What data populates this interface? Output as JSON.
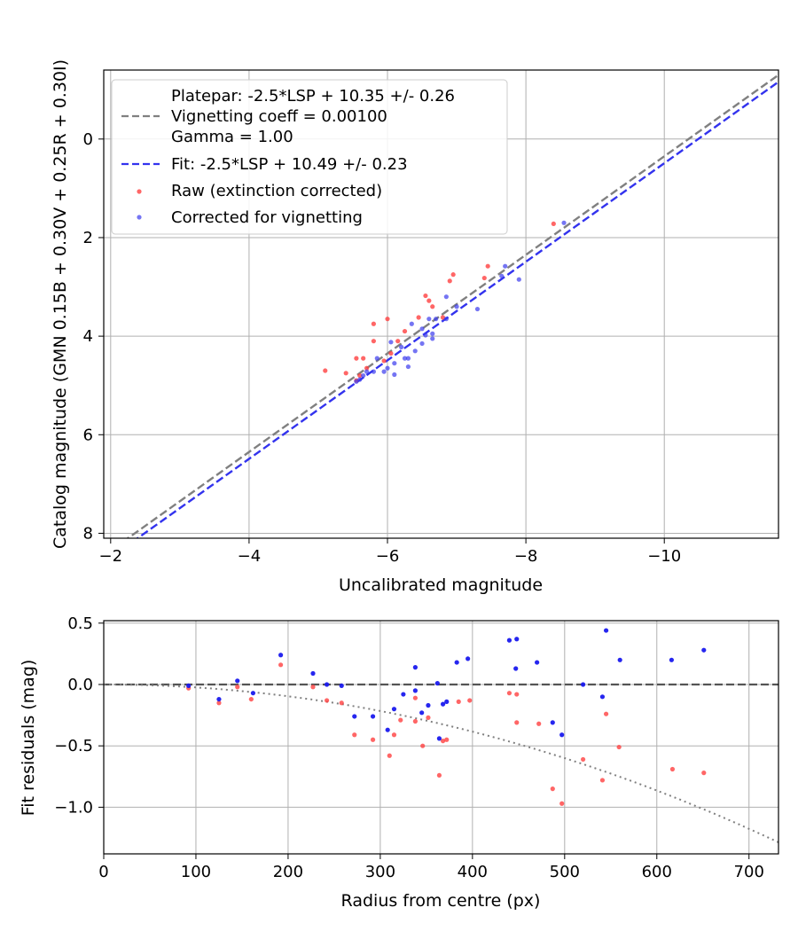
{
  "chart_data": [
    {
      "type": "scatter",
      "xlabel": "Uncalibrated magnitude",
      "ylabel": "Catalog magnitude (GMN 0.15B + 0.30V + 0.25R + 0.30I)",
      "xlim": [
        -1.9,
        -11.65
      ],
      "ylim": [
        8.1,
        -1.4
      ],
      "xticks": [
        -2,
        -4,
        -6,
        -8,
        -10
      ],
      "xtick_labels": [
        "−2",
        "−4",
        "−6",
        "−8",
        "−10"
      ],
      "yticks": [
        0,
        2,
        4,
        6,
        8
      ],
      "ytick_labels": [
        "0",
        "2",
        "4",
        "6",
        "8"
      ],
      "grid": true,
      "legend_position": "top-left",
      "lines": [
        {
          "name": "Platepar: -2.5*LSP + 10.35 +/- 0.26\nVignetting coeff = 0.00100\nGamma = 1.00",
          "color": "#808080",
          "dash": "dashed",
          "slope": 1,
          "intercept": 10.35
        },
        {
          "name": "Fit: -2.5*LSP + 10.49 +/- 0.23",
          "color": "#3333ee",
          "dash": "dashed",
          "slope": 1,
          "intercept": 10.49
        }
      ],
      "series": [
        {
          "name": "Raw (extinction corrected)",
          "color": "#ff4040",
          "points": [
            [
              -8.4,
              1.72
            ],
            [
              -7.45,
              2.58
            ],
            [
              -7.4,
              2.82
            ],
            [
              -6.95,
              2.75
            ],
            [
              -6.9,
              2.88
            ],
            [
              -6.55,
              3.18
            ],
            [
              -6.6,
              3.28
            ],
            [
              -6.65,
              3.4
            ],
            [
              -6.8,
              3.62
            ],
            [
              -6.45,
              3.62
            ],
            [
              -6.0,
              3.65
            ],
            [
              -5.8,
              3.75
            ],
            [
              -6.25,
              3.9
            ],
            [
              -6.15,
              4.1
            ],
            [
              -5.8,
              4.1
            ],
            [
              -6.05,
              4.35
            ],
            [
              -5.95,
              4.5
            ],
            [
              -5.65,
              4.45
            ],
            [
              -5.55,
              4.45
            ],
            [
              -5.1,
              4.7
            ],
            [
              -5.4,
              4.75
            ],
            [
              -5.6,
              4.8
            ],
            [
              -5.7,
              4.65
            ],
            [
              -5.55,
              4.9
            ]
          ]
        },
        {
          "name": "Corrected for vignetting",
          "color": "#3a3aee",
          "points": [
            [
              -8.55,
              1.7
            ],
            [
              -7.7,
              2.58
            ],
            [
              -7.65,
              2.78
            ],
            [
              -7.9,
              2.85
            ],
            [
              -7.3,
              3.45
            ],
            [
              -7.0,
              3.4
            ],
            [
              -6.85,
              3.2
            ],
            [
              -6.85,
              3.65
            ],
            [
              -6.7,
              3.65
            ],
            [
              -6.6,
              3.65
            ],
            [
              -6.5,
              3.85
            ],
            [
              -6.55,
              3.98
            ],
            [
              -6.65,
              3.95
            ],
            [
              -6.65,
              4.05
            ],
            [
              -6.35,
              3.75
            ],
            [
              -6.5,
              4.15
            ],
            [
              -6.05,
              4.12
            ],
            [
              -6.2,
              4.22
            ],
            [
              -6.3,
              4.45
            ],
            [
              -6.4,
              4.3
            ],
            [
              -6.25,
              4.45
            ],
            [
              -6.3,
              4.62
            ],
            [
              -6.1,
              4.55
            ],
            [
              -6.0,
              4.65
            ],
            [
              -5.85,
              4.45
            ],
            [
              -5.95,
              4.72
            ],
            [
              -6.1,
              4.78
            ],
            [
              -5.8,
              4.72
            ],
            [
              -5.7,
              4.72
            ],
            [
              -5.65,
              4.8
            ],
            [
              -5.6,
              4.88
            ],
            [
              -5.55,
              4.92
            ]
          ]
        }
      ]
    },
    {
      "type": "scatter",
      "xlabel": "Radius from centre (px)",
      "ylabel": "Fit residuals (mag)",
      "xlim": [
        0,
        732
      ],
      "ylim": [
        -1.38,
        0.52
      ],
      "xticks": [
        0,
        100,
        200,
        300,
        400,
        500,
        600,
        700
      ],
      "xtick_labels": [
        "0",
        "100",
        "200",
        "300",
        "400",
        "500",
        "600",
        "700"
      ],
      "yticks": [
        0.5,
        0.0,
        -0.5,
        -1.0
      ],
      "ytick_labels": [
        "0.5",
        "0.0",
        "−0.5",
        "−1.0"
      ],
      "grid": true,
      "reference_lines": [
        {
          "name": "zero",
          "type": "horizontal",
          "value": 0,
          "color": "#555555",
          "dash": "dashed"
        },
        {
          "name": "vignetting model",
          "type": "curve",
          "coefficient": -2.4e-06,
          "color": "#808080",
          "dash": "dotted"
        }
      ],
      "series": [
        {
          "name": "Raw (extinction corrected)",
          "color": "#ff4040",
          "points": [
            [
              92,
              -0.03
            ],
            [
              125,
              -0.15
            ],
            [
              145,
              -0.02
            ],
            [
              160,
              -0.12
            ],
            [
              192,
              0.16
            ],
            [
              227,
              -0.02
            ],
            [
              242,
              -0.13
            ],
            [
              258,
              -0.15
            ],
            [
              272,
              -0.41
            ],
            [
              292,
              -0.45
            ],
            [
              310,
              -0.58
            ],
            [
              315,
              -0.41
            ],
            [
              322,
              -0.29
            ],
            [
              338,
              -0.11
            ],
            [
              338,
              -0.3
            ],
            [
              346,
              -0.5
            ],
            [
              352,
              -0.27
            ],
            [
              364,
              -0.74
            ],
            [
              368,
              -0.46
            ],
            [
              372,
              -0.45
            ],
            [
              385,
              -0.14
            ],
            [
              397,
              -0.13
            ],
            [
              440,
              -0.07
            ],
            [
              448,
              -0.08
            ],
            [
              448,
              -0.31
            ],
            [
              472,
              -0.32
            ],
            [
              487,
              -0.85
            ],
            [
              497,
              -0.97
            ],
            [
              520,
              -0.61
            ],
            [
              541,
              -0.78
            ],
            [
              545,
              -0.24
            ],
            [
              559,
              -0.51
            ],
            [
              617,
              -0.69
            ],
            [
              651,
              -0.72
            ]
          ]
        },
        {
          "name": "Corrected for vignetting",
          "color": "#1a1aee",
          "points": [
            [
              92,
              -0.01
            ],
            [
              125,
              -0.12
            ],
            [
              145,
              0.03
            ],
            [
              162,
              -0.07
            ],
            [
              192,
              0.24
            ],
            [
              227,
              0.09
            ],
            [
              242,
              0.0
            ],
            [
              258,
              -0.01
            ],
            [
              272,
              -0.26
            ],
            [
              292,
              -0.26
            ],
            [
              308,
              -0.37
            ],
            [
              315,
              -0.2
            ],
            [
              325,
              -0.08
            ],
            [
              338,
              0.14
            ],
            [
              338,
              -0.05
            ],
            [
              345,
              -0.23
            ],
            [
              352,
              -0.17
            ],
            [
              362,
              0.01
            ],
            [
              364,
              -0.44
            ],
            [
              368,
              -0.16
            ],
            [
              372,
              -0.14
            ],
            [
              383,
              0.18
            ],
            [
              395,
              0.21
            ],
            [
              440,
              0.36
            ],
            [
              448,
              0.37
            ],
            [
              447,
              0.13
            ],
            [
              470,
              0.18
            ],
            [
              487,
              -0.31
            ],
            [
              497,
              -0.41
            ],
            [
              520,
              0.0
            ],
            [
              541,
              -0.1
            ],
            [
              545,
              0.44
            ],
            [
              560,
              0.2
            ],
            [
              616,
              0.2
            ],
            [
              651,
              0.28
            ]
          ]
        }
      ]
    }
  ]
}
